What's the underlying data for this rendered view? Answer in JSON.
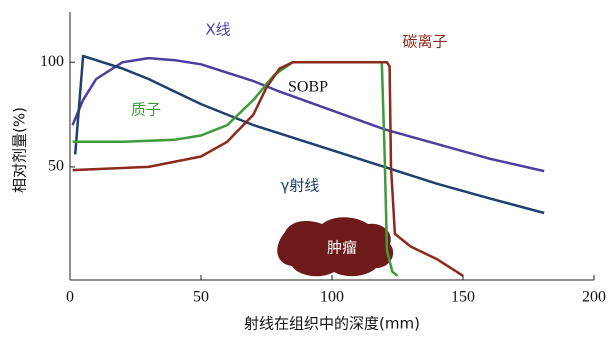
{
  "chart_data": {
    "type": "line",
    "xlabel": "射线在组织中的深度(mm)",
    "ylabel": "相对剂量(%)",
    "xlim": [
      0,
      200
    ],
    "xticks": [
      0,
      50,
      100,
      150,
      200
    ],
    "ylim": [
      -4,
      124
    ],
    "yticks": [
      50,
      100
    ],
    "annotations": [
      "SOBP",
      "肿瘤"
    ],
    "series": [
      {
        "name": "X线",
        "color": "#4b3f9e",
        "x": [
          1,
          5,
          10,
          20,
          30,
          40,
          50,
          60,
          70,
          80,
          100,
          120,
          140,
          160,
          181
        ],
        "values": [
          70,
          82,
          92,
          100,
          102,
          101,
          99,
          95,
          91,
          86,
          77,
          68,
          61,
          54,
          48
        ]
      },
      {
        "name": "γ射线",
        "color": "#1f3f6e",
        "x": [
          2,
          5,
          10,
          20,
          30,
          40,
          50,
          60,
          70,
          80,
          90,
          100,
          120,
          140,
          160,
          181
        ],
        "values": [
          56,
          103,
          101,
          97,
          92,
          86,
          80,
          75,
          70,
          66,
          62,
          58,
          50,
          42,
          35,
          28
        ]
      },
      {
        "name": "质子",
        "color": "#3f9b3a",
        "x": [
          1,
          20,
          40,
          50,
          60,
          70,
          78,
          85,
          119,
          120,
          121,
          123,
          125
        ],
        "values": [
          62,
          62,
          63,
          65,
          70,
          82,
          94,
          100,
          100,
          60,
          10,
          0,
          -2
        ]
      },
      {
        "name": "碳离子",
        "color": "#8b2a1c",
        "x": [
          1,
          30,
          50,
          60,
          70,
          75,
          80,
          85,
          121,
          122,
          122.5,
          124,
          130,
          140,
          150
        ],
        "values": [
          48.5,
          50,
          55,
          62,
          75,
          88,
          97,
          100,
          100,
          98,
          50,
          18,
          12,
          6,
          -2
        ]
      }
    ]
  }
}
